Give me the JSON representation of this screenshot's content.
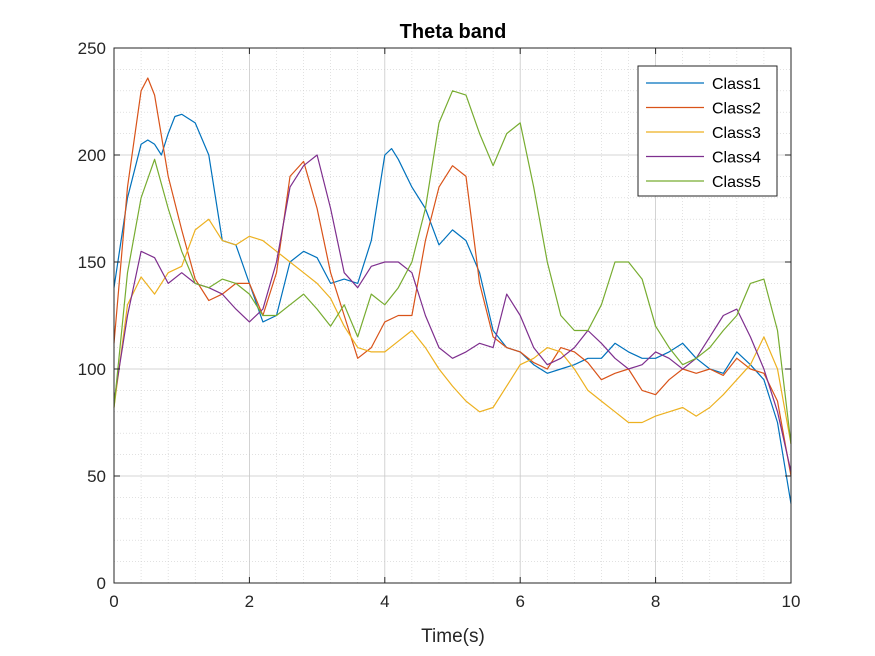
{
  "chart_data": {
    "type": "line",
    "title": "Theta band",
    "xlabel": "Time(s)",
    "ylabel": "",
    "xlim": [
      0,
      10
    ],
    "ylim": [
      0,
      250
    ],
    "xticks": [
      0,
      2,
      4,
      6,
      8,
      10
    ],
    "yticks": [
      0,
      50,
      100,
      150,
      200,
      250
    ],
    "grid": "major and minor (dotted)",
    "legend_position": "top-right",
    "series": [
      {
        "name": "Class1",
        "color": "#0072BD",
        "x": [
          0,
          0.2,
          0.4,
          0.5,
          0.6,
          0.7,
          0.8,
          0.9,
          1.0,
          1.2,
          1.4,
          1.6,
          1.8,
          2.0,
          2.2,
          2.4,
          2.6,
          2.8,
          3.0,
          3.2,
          3.4,
          3.6,
          3.8,
          4.0,
          4.1,
          4.2,
          4.4,
          4.6,
          4.8,
          5.0,
          5.2,
          5.4,
          5.6,
          5.8,
          6.0,
          6.2,
          6.4,
          6.6,
          6.8,
          7.0,
          7.2,
          7.4,
          7.6,
          7.8,
          8.0,
          8.2,
          8.4,
          8.6,
          8.8,
          9.0,
          9.2,
          9.4,
          9.6,
          9.8,
          10.0
        ],
        "y": [
          138,
          180,
          205,
          207,
          205,
          200,
          210,
          218,
          219,
          215,
          200,
          160,
          158,
          140,
          122,
          125,
          150,
          155,
          152,
          140,
          142,
          140,
          160,
          200,
          203,
          198,
          185,
          175,
          158,
          165,
          160,
          145,
          118,
          110,
          108,
          102,
          98,
          100,
          102,
          105,
          105,
          112,
          108,
          105,
          105,
          108,
          112,
          105,
          100,
          98,
          108,
          102,
          95,
          75,
          37
        ]
      },
      {
        "name": "Class2",
        "color": "#D95319",
        "x": [
          0,
          0.2,
          0.4,
          0.5,
          0.6,
          0.8,
          1.0,
          1.2,
          1.4,
          1.6,
          1.8,
          2.0,
          2.2,
          2.4,
          2.6,
          2.8,
          3.0,
          3.2,
          3.4,
          3.6,
          3.8,
          4.0,
          4.2,
          4.4,
          4.6,
          4.8,
          5.0,
          5.2,
          5.4,
          5.6,
          5.8,
          6.0,
          6.2,
          6.4,
          6.6,
          6.8,
          7.0,
          7.2,
          7.4,
          7.6,
          7.8,
          8.0,
          8.2,
          8.4,
          8.6,
          8.8,
          9.0,
          9.2,
          9.4,
          9.6,
          9.8,
          10.0
        ],
        "y": [
          112,
          185,
          230,
          236,
          228,
          190,
          165,
          142,
          132,
          135,
          140,
          140,
          125,
          145,
          190,
          197,
          175,
          145,
          125,
          105,
          110,
          122,
          125,
          125,
          160,
          185,
          195,
          190,
          140,
          115,
          110,
          108,
          103,
          100,
          110,
          108,
          103,
          95,
          98,
          100,
          90,
          88,
          95,
          100,
          98,
          100,
          97,
          105,
          100,
          98,
          85,
          50
        ]
      },
      {
        "name": "Class3",
        "color": "#EDB120",
        "x": [
          0,
          0.2,
          0.4,
          0.6,
          0.8,
          1.0,
          1.2,
          1.4,
          1.6,
          1.8,
          2.0,
          2.2,
          2.4,
          2.6,
          2.8,
          3.0,
          3.2,
          3.4,
          3.6,
          3.8,
          4.0,
          4.2,
          4.4,
          4.6,
          4.8,
          5.0,
          5.2,
          5.4,
          5.6,
          5.8,
          6.0,
          6.2,
          6.4,
          6.6,
          6.8,
          7.0,
          7.2,
          7.4,
          7.6,
          7.8,
          8.0,
          8.2,
          8.4,
          8.6,
          8.8,
          9.0,
          9.2,
          9.4,
          9.6,
          9.8,
          10.0
        ],
        "y": [
          82,
          130,
          143,
          135,
          145,
          148,
          165,
          170,
          160,
          158,
          162,
          160,
          155,
          150,
          145,
          140,
          133,
          120,
          110,
          108,
          108,
          113,
          118,
          110,
          100,
          92,
          85,
          80,
          82,
          92,
          102,
          105,
          110,
          108,
          100,
          90,
          85,
          80,
          75,
          75,
          78,
          80,
          82,
          78,
          82,
          88,
          95,
          102,
          115,
          100,
          65
        ]
      },
      {
        "name": "Class4",
        "color": "#7E2F8E",
        "x": [
          0,
          0.2,
          0.4,
          0.6,
          0.8,
          1.0,
          1.2,
          1.4,
          1.6,
          1.8,
          2.0,
          2.2,
          2.4,
          2.6,
          2.8,
          3.0,
          3.2,
          3.4,
          3.6,
          3.8,
          4.0,
          4.2,
          4.4,
          4.6,
          4.8,
          5.0,
          5.2,
          5.4,
          5.6,
          5.8,
          6.0,
          6.2,
          6.4,
          6.6,
          6.8,
          7.0,
          7.2,
          7.4,
          7.6,
          7.8,
          8.0,
          8.2,
          8.4,
          8.6,
          8.8,
          9.0,
          9.2,
          9.4,
          9.6,
          9.8,
          10.0
        ],
        "y": [
          85,
          125,
          155,
          152,
          140,
          145,
          140,
          138,
          135,
          128,
          122,
          128,
          150,
          185,
          195,
          200,
          175,
          145,
          138,
          148,
          150,
          150,
          145,
          125,
          110,
          105,
          108,
          112,
          110,
          135,
          125,
          110,
          102,
          105,
          110,
          118,
          112,
          105,
          100,
          102,
          108,
          105,
          100,
          105,
          115,
          125,
          128,
          115,
          100,
          80,
          52
        ]
      },
      {
        "name": "Class5",
        "color": "#77AC30",
        "x": [
          0,
          0.2,
          0.4,
          0.6,
          0.8,
          1.0,
          1.2,
          1.4,
          1.6,
          1.8,
          2.0,
          2.2,
          2.4,
          2.6,
          2.8,
          3.0,
          3.2,
          3.4,
          3.6,
          3.8,
          4.0,
          4.2,
          4.4,
          4.6,
          4.8,
          5.0,
          5.2,
          5.4,
          5.6,
          5.8,
          6.0,
          6.2,
          6.4,
          6.6,
          6.8,
          7.0,
          7.2,
          7.4,
          7.6,
          7.8,
          8.0,
          8.2,
          8.4,
          8.6,
          8.8,
          9.0,
          9.2,
          9.4,
          9.6,
          9.8,
          10.0
        ],
        "y": [
          82,
          145,
          180,
          198,
          175,
          155,
          140,
          138,
          142,
          140,
          135,
          125,
          125,
          130,
          135,
          128,
          120,
          130,
          115,
          135,
          130,
          138,
          150,
          175,
          215,
          230,
          228,
          210,
          195,
          210,
          215,
          185,
          150,
          125,
          118,
          118,
          130,
          150,
          150,
          142,
          120,
          110,
          102,
          105,
          110,
          118,
          125,
          140,
          142,
          118,
          65
        ]
      }
    ]
  }
}
